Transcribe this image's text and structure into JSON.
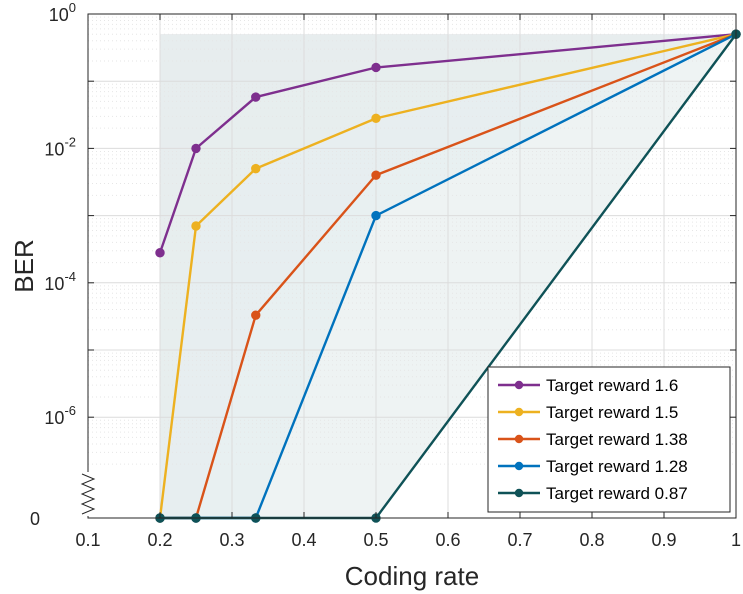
{
  "chart_data": {
    "type": "line",
    "title": "",
    "xlabel": "Coding rate",
    "ylabel": "BER",
    "x_range": [
      0.1,
      1
    ],
    "x_ticks": [
      "0.1",
      "0.2",
      "0.3",
      "0.4",
      "0.5",
      "0.6",
      "0.7",
      "0.8",
      "0.9",
      "1"
    ],
    "y_scale": "log",
    "y_range_log10": [
      -7.5,
      0
    ],
    "y_ticks": [
      {
        "exp": 0,
        "base": "10",
        "sup": "0"
      },
      {
        "exp": -2,
        "base": "10",
        "sup": "-2"
      },
      {
        "exp": -4,
        "base": "10",
        "sup": "-4"
      },
      {
        "exp": -6,
        "base": "10",
        "sup": "-6"
      }
    ],
    "zero_label": "0",
    "zero_level_log10": -7.5,
    "grid": true,
    "legend_position": "bottom-right",
    "series": [
      {
        "name": "Target reward 1.6",
        "color": "#7E2F8E",
        "x": [
          0.2,
          0.25,
          0.333,
          0.5,
          1
        ],
        "y": [
          0.00028,
          0.01,
          0.058,
          0.16,
          0.5
        ]
      },
      {
        "name": "Target reward 1.5",
        "color": "#EDB120",
        "x": [
          0.2,
          0.25,
          0.333,
          0.5,
          1
        ],
        "y": [
          0,
          0.0007,
          0.005,
          0.028,
          0.5
        ]
      },
      {
        "name": "Target reward 1.38",
        "color": "#D95319",
        "x": [
          0.2,
          0.25,
          0.333,
          0.5,
          1
        ],
        "y": [
          0,
          0,
          3.3e-05,
          0.004,
          0.5
        ]
      },
      {
        "name": "Target reward 1.28",
        "color": "#0072BD",
        "x": [
          0.2,
          0.25,
          0.333,
          0.5,
          1
        ],
        "y": [
          0,
          0,
          0,
          0.001,
          0.5
        ]
      },
      {
        "name": "Target reward 0.87",
        "color": "#0F5257",
        "x": [
          0.2,
          0.25,
          0.333,
          0.5,
          1
        ],
        "y": [
          0,
          0,
          0,
          0,
          0.5
        ]
      }
    ]
  }
}
